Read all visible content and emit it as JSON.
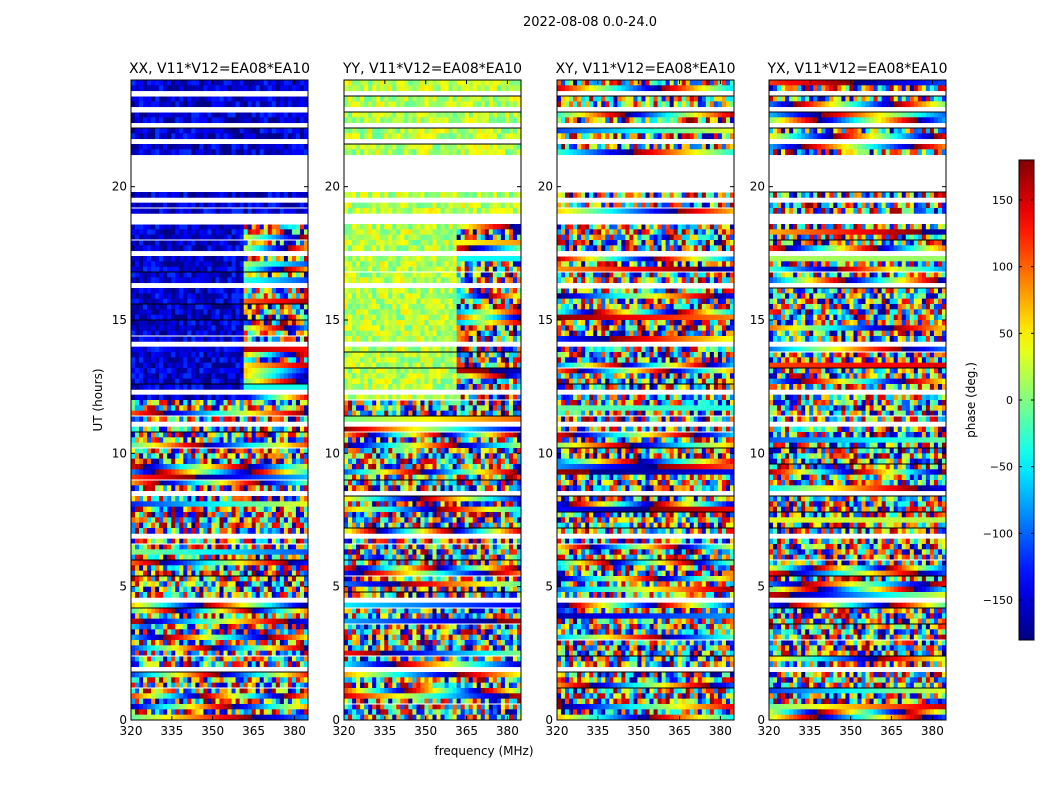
{
  "figure_title": "2022-08-08 0.0-24.0",
  "chart_data": {
    "type": "heatmap",
    "suptitle": "2022-08-08 0.0-24.0",
    "xlabel": "frequency (MHz)",
    "ylabel": "UT (hours)",
    "xlim": [
      320,
      385
    ],
    "ylim": [
      0,
      24
    ],
    "x_ticks": [
      320,
      335,
      350,
      365,
      380
    ],
    "y_ticks": [
      0,
      5,
      10,
      15,
      20
    ],
    "colormap": "jet",
    "colorbar": {
      "label": "phase (deg.)",
      "range": [
        -180,
        180
      ],
      "ticks": [
        -150,
        -100,
        -50,
        0,
        50,
        100,
        150
      ],
      "tick_labels": [
        "−150",
        "−100",
        "−50",
        "0",
        "50",
        "100",
        "150"
      ]
    },
    "flagged_time_ranges_hours": [
      [
        1.8,
        2.0
      ],
      [
        3.3,
        3.4
      ],
      [
        4.5,
        4.6
      ],
      [
        6.3,
        6.4
      ],
      [
        6.8,
        7.0
      ],
      [
        7.2,
        7.3
      ],
      [
        8.5,
        8.6
      ],
      [
        11.1,
        11.2
      ],
      [
        11.8,
        11.9
      ],
      [
        12.3,
        12.5
      ],
      [
        13.0,
        13.1
      ],
      [
        14.1,
        14.2
      ],
      [
        15.6,
        15.7
      ],
      [
        16.2,
        16.4
      ],
      [
        17.5,
        17.6
      ],
      [
        18.6,
        19.0
      ],
      [
        19.5,
        19.6
      ],
      [
        19.9,
        21.2
      ],
      [
        21.6,
        21.8
      ],
      [
        22.2,
        22.5
      ],
      [
        22.9,
        23.0
      ],
      [
        23.5,
        23.6
      ]
    ],
    "panels": [
      {
        "title": "XX, V11*V12=EA08*EA10",
        "polarization": "XX",
        "baseline": "EA08*EA10",
        "dominant_phase_deg": -150
      },
      {
        "title": "YY, V11*V12=EA08*EA10",
        "polarization": "YY",
        "baseline": "EA08*EA10",
        "dominant_phase_deg": 20
      },
      {
        "title": "XY, V11*V12=EA08*EA10",
        "polarization": "XY",
        "baseline": "EA08*EA10",
        "dominant_phase_deg": null
      },
      {
        "title": "YX, V11*V12=EA08*EA10",
        "polarization": "YX",
        "baseline": "EA08*EA10",
        "dominant_phase_deg": null
      }
    ]
  }
}
